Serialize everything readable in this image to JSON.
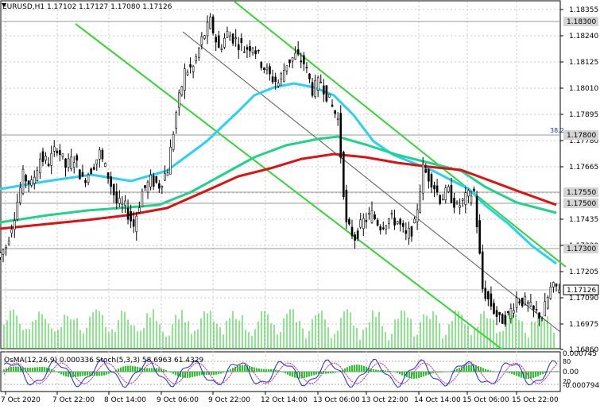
{
  "header": {
    "symbol_line": "EURUSD,H1  1.17102 1.17127 1.17080 1.17126"
  },
  "price_axis": {
    "ticks": [
      "1.18355",
      "1.18240",
      "1.18125",
      "1.18010",
      "1.17895",
      "1.17780",
      "1.17665",
      "1.17435",
      "1.17320",
      "1.17205",
      "1.17090",
      "1.16975",
      "1.16860"
    ],
    "boxed_labels": [
      "1.18300",
      "1.17800",
      "1.17550",
      "1.17500",
      "1.17300",
      "1.17126"
    ],
    "fib_label": "38.2"
  },
  "time_axis": {
    "labels": [
      "7 Oct 2020",
      "7 Oct 22:00",
      "8 Oct 14:00",
      "9 Oct 06:00",
      "9 Oct 22:00",
      "12 Oct 14:00",
      "13 Oct 06:00",
      "13 Oct 22:00",
      "14 Oct 14:00",
      "15 Oct 06:00",
      "15 Oct 22:00"
    ]
  },
  "indicator": {
    "label": "OsMA(12,26,9) 0.000336  Stoch(5,3,3) 58.6963 61.4329",
    "ticks": [
      "0.000745",
      "0.00",
      "-0.000794"
    ],
    "levels": [
      "80",
      "20"
    ]
  },
  "colors": {
    "ema_fast": "#29d3f0",
    "ema_mid": "#1fd38a",
    "ema_slow": "#e01010",
    "channel": "#33d633",
    "candle": "#000000",
    "volume": "#22cc22"
  },
  "chart_data": {
    "type": "candlestick",
    "close_series": [
      1.1731,
      1.1745,
      1.1762,
      1.1758,
      1.177,
      1.1768,
      1.1775,
      1.1766,
      1.177,
      1.176,
      1.1765,
      1.1772,
      1.1762,
      1.175,
      1.1748,
      1.174,
      1.1755,
      1.176,
      1.1758,
      1.1765,
      1.179,
      1.1808,
      1.181,
      1.1822,
      1.183,
      1.1818,
      1.1825,
      1.1822,
      1.1818,
      1.182,
      1.1812,
      1.1806,
      1.1803,
      1.1812,
      1.1815,
      1.1812,
      1.18,
      1.1804,
      1.1795,
      1.1787,
      1.174,
      1.1735,
      1.1742,
      1.1745,
      1.174,
      1.1743,
      1.1742,
      1.1735,
      1.174,
      1.1765,
      1.176,
      1.1752,
      1.1755,
      1.1748,
      1.1752,
      1.1755,
      1.1712,
      1.1705,
      1.1698,
      1.17,
      1.1708,
      1.1706,
      1.1702,
      1.17,
      1.1712,
      1.1713
    ],
    "last_price": 1.17126,
    "ylim": [
      1.1686,
      1.18355
    ]
  }
}
